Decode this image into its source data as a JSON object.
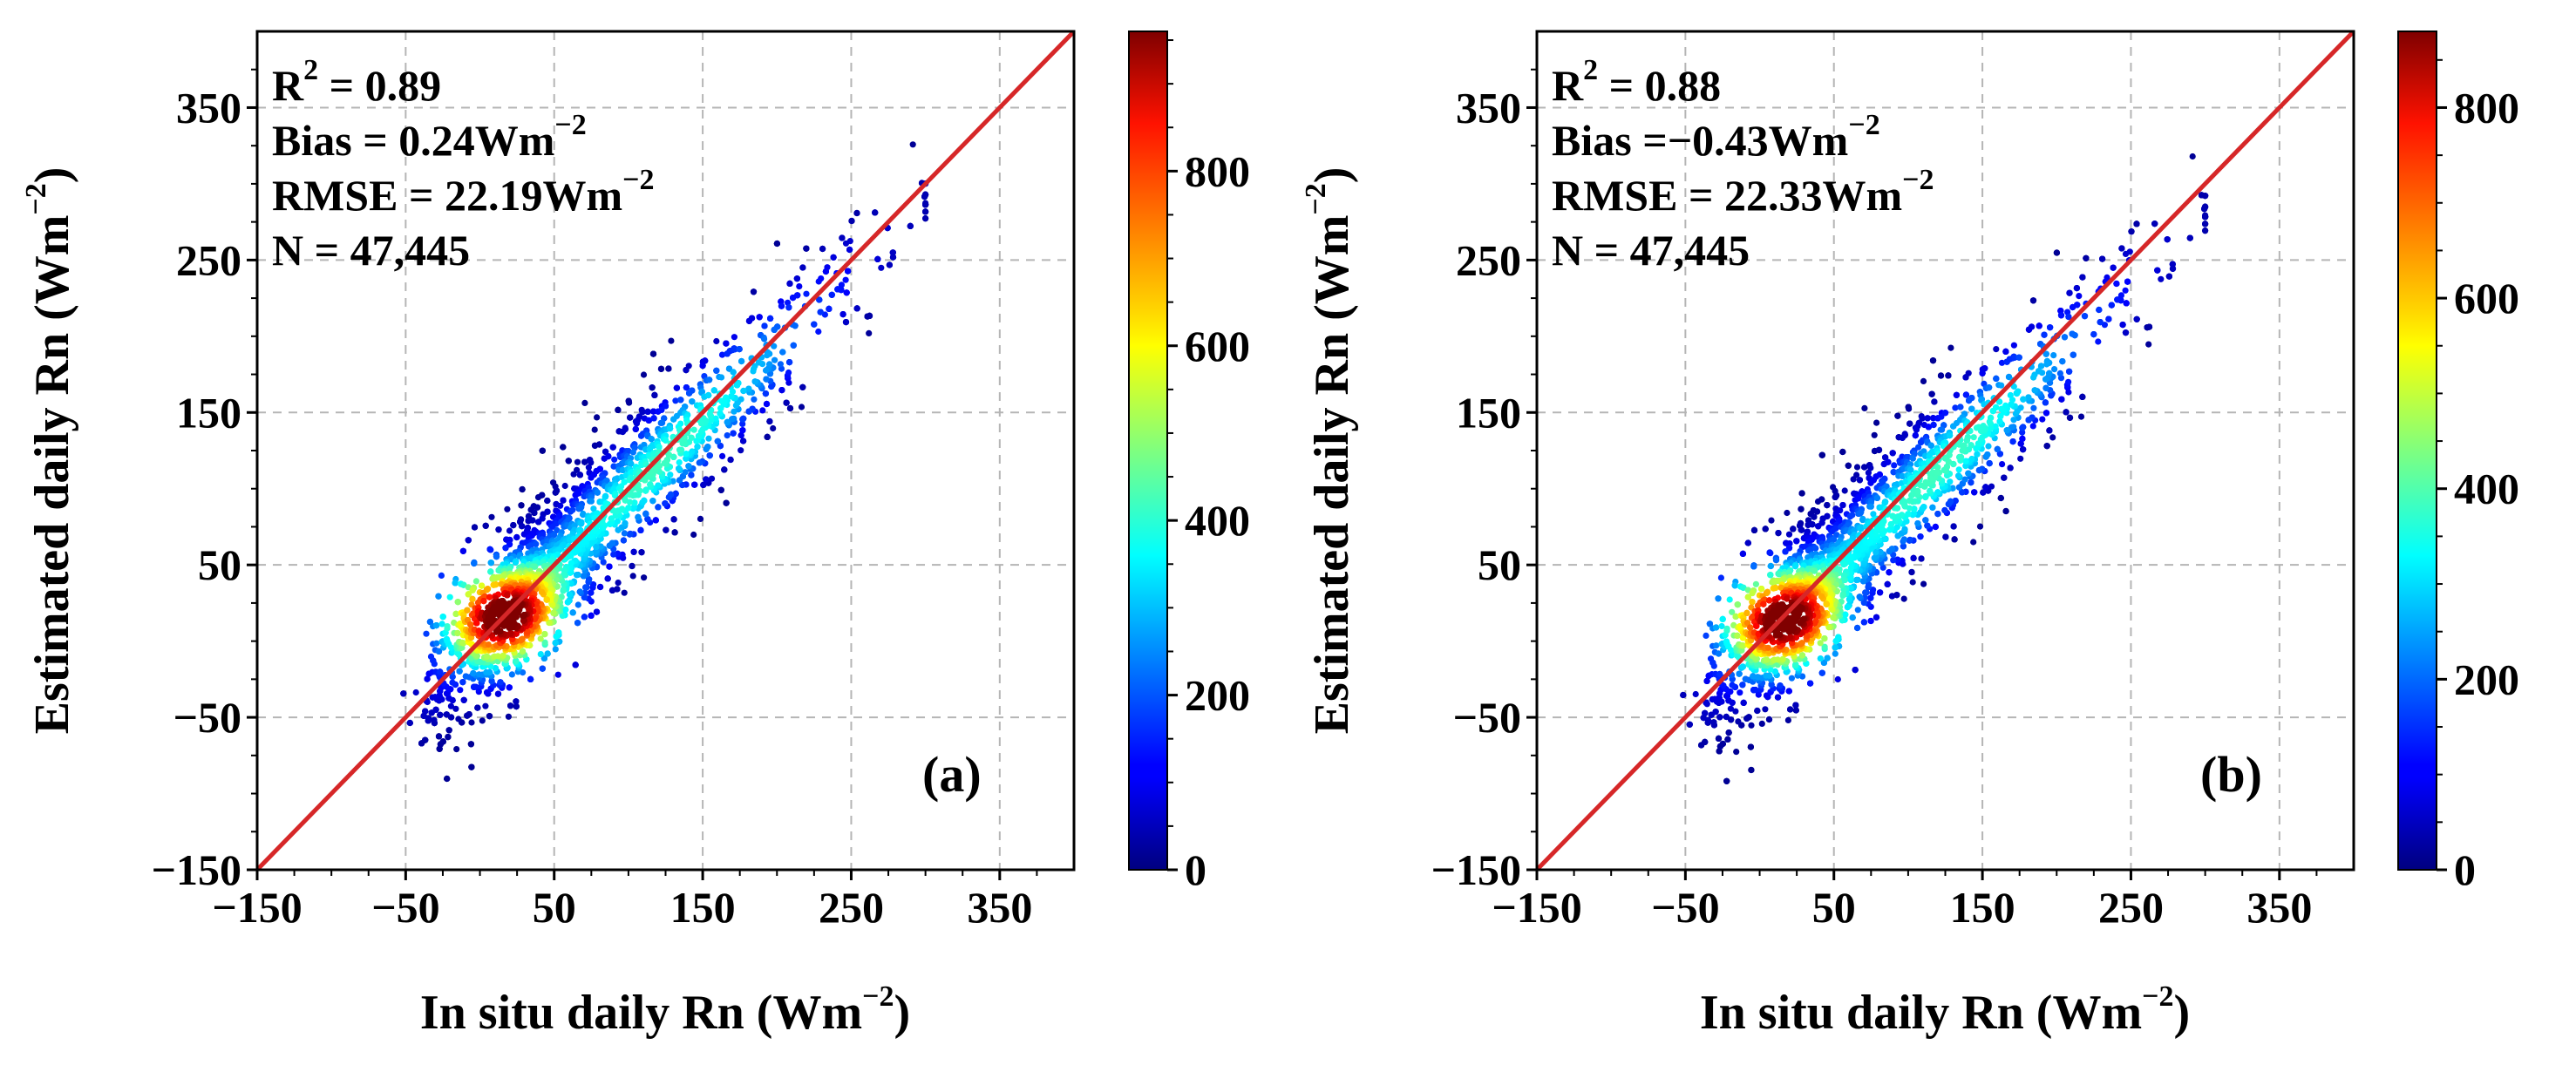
{
  "chart_data": [
    {
      "type": "scatter",
      "subtype": "density-scatter",
      "panel_label": "(a)",
      "xlabel": {
        "main": "In situ daily Rn (Wm",
        "sup": "−2",
        "close": ")"
      },
      "ylabel": {
        "main": "Estimated daily Rn (Wm",
        "sup": "−2",
        "close": ")"
      },
      "xlim": [
        -150,
        400
      ],
      "ylim": [
        -150,
        400
      ],
      "xticks": [
        -150,
        -50,
        50,
        150,
        250,
        350
      ],
      "yticks": [
        -150,
        -50,
        50,
        150,
        250,
        350
      ],
      "xtick_labels": [
        "−150",
        "−50",
        "50",
        "150",
        "250",
        "350"
      ],
      "ytick_labels": [
        "−150",
        "−50",
        "50",
        "150",
        "250",
        "350"
      ],
      "grid": true,
      "reference_line": {
        "type": "1:1",
        "color": "#d62728"
      },
      "stats": {
        "r2": {
          "label": "R",
          "sup": "2",
          "text": " = 0.89"
        },
        "bias": {
          "main": "Bias = 0.24Wm",
          "sup": "−2"
        },
        "rmse": {
          "main": "RMSE = 22.19Wm",
          "sup": "−2"
        },
        "n": "N = 47,445"
      },
      "scatter_trend": {
        "slope": 0.95,
        "intercept": 2,
        "spread": 24
      },
      "colorbar": {
        "min": 0,
        "max": 960,
        "ticks": [
          0,
          200,
          400,
          600,
          800
        ],
        "tick_labels": [
          "0",
          "200",
          "400",
          "600",
          "800"
        ],
        "colormap": "jet"
      }
    },
    {
      "type": "scatter",
      "subtype": "density-scatter",
      "panel_label": "(b)",
      "xlabel": {
        "main": "In situ daily Rn (Wm",
        "sup": "−2",
        "close": ")"
      },
      "ylabel": {
        "main": "Estimated daily Rn (Wm",
        "sup": "−2",
        "close": ")"
      },
      "xlim": [
        -150,
        400
      ],
      "ylim": [
        -150,
        400
      ],
      "xticks": [
        -150,
        -50,
        50,
        150,
        250,
        350
      ],
      "yticks": [
        -150,
        -50,
        50,
        150,
        250,
        350
      ],
      "xtick_labels": [
        "−150",
        "−50",
        "50",
        "150",
        "250",
        "350"
      ],
      "ytick_labels": [
        "−150",
        "−50",
        "50",
        "150",
        "250",
        "350"
      ],
      "grid": true,
      "reference_line": {
        "type": "1:1",
        "color": "#d62728"
      },
      "stats": {
        "r2": {
          "label": "R",
          "sup": "2",
          "text": " = 0.88"
        },
        "bias": {
          "main": "Bias =−0.43Wm",
          "sup": "−2"
        },
        "rmse": {
          "main": "RMSE = 22.33Wm",
          "sup": "−2"
        },
        "n": "N = 47,445"
      },
      "scatter_trend": {
        "slope": 0.93,
        "intercept": 0,
        "spread": 24
      },
      "colorbar": {
        "min": 0,
        "max": 880,
        "ticks": [
          0,
          200,
          400,
          600,
          800
        ],
        "tick_labels": [
          "0",
          "200",
          "400",
          "600",
          "800"
        ],
        "colormap": "jet"
      }
    }
  ]
}
